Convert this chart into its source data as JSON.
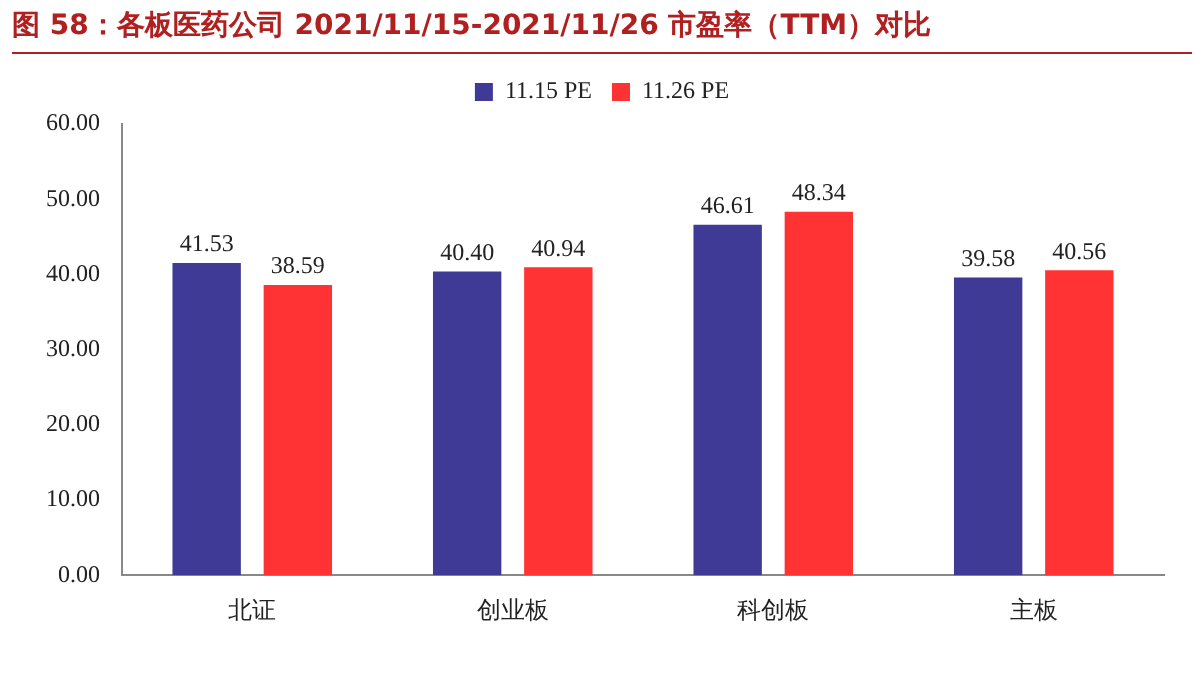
{
  "chart_data": {
    "type": "bar",
    "title": "图 58：各板医药公司 2021/11/15-2021/11/26 市盈率（TTM）对比",
    "categories": [
      "北证",
      "创业板",
      "科创板",
      "主板"
    ],
    "series": [
      {
        "name": "11.15 PE",
        "color": "#3f3a96",
        "values": [
          41.53,
          40.4,
          46.61,
          39.58
        ],
        "value_labels": [
          "41.53",
          "40.40",
          "46.61",
          "39.58"
        ]
      },
      {
        "name": "11.26 PE",
        "color": "#ff3333",
        "values": [
          38.59,
          40.94,
          48.34,
          40.56
        ],
        "value_labels": [
          "38.59",
          "40.94",
          "48.34",
          "40.56"
        ]
      }
    ],
    "ylim": [
      0,
      60
    ],
    "yticks": [
      {
        "value": 0,
        "label": "0.00"
      },
      {
        "value": 10,
        "label": "10.00"
      },
      {
        "value": 20,
        "label": "20.00"
      },
      {
        "value": 30,
        "label": "30.00"
      },
      {
        "value": 40,
        "label": "40.00"
      },
      {
        "value": 50,
        "label": "50.00"
      },
      {
        "value": 60,
        "label": "60.00"
      }
    ],
    "grid": false,
    "legend": "top"
  }
}
